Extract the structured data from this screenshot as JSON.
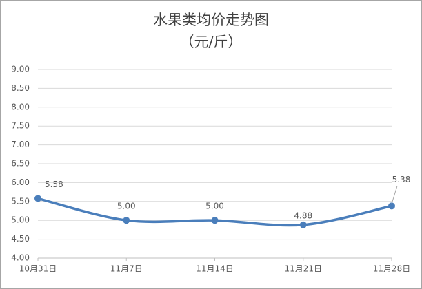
{
  "chart_data": {
    "type": "line",
    "title": "水果类均价走势图",
    "subtitle": "（元/斤）",
    "categories": [
      "10月31日",
      "11月7日",
      "11月14日",
      "11月21日",
      "11月28日"
    ],
    "series": [
      {
        "color": "#4a7ebb",
        "values": [
          5.58,
          5.0,
          5.0,
          4.88,
          5.38
        ],
        "value_labels": [
          "5.58",
          "5.00",
          "5.00",
          "4.88",
          "5.38"
        ]
      }
    ],
    "ylim": [
      4,
      9
    ],
    "yticks": [
      {
        "value": 4,
        "label": "4.00"
      },
      {
        "value": 4.5,
        "label": "4.50"
      },
      {
        "value": 5,
        "label": "5.00"
      },
      {
        "value": 5.5,
        "label": "5.50"
      },
      {
        "value": 6,
        "label": "6.00"
      },
      {
        "value": 6.5,
        "label": "6.50"
      },
      {
        "value": 7,
        "label": "7.00"
      },
      {
        "value": 7.5,
        "label": "7.50"
      },
      {
        "value": 8,
        "label": "8.00"
      },
      {
        "value": 8.5,
        "label": "8.50"
      },
      {
        "value": 9,
        "label": "9.00"
      }
    ],
    "grid": true,
    "smooth": true
  }
}
